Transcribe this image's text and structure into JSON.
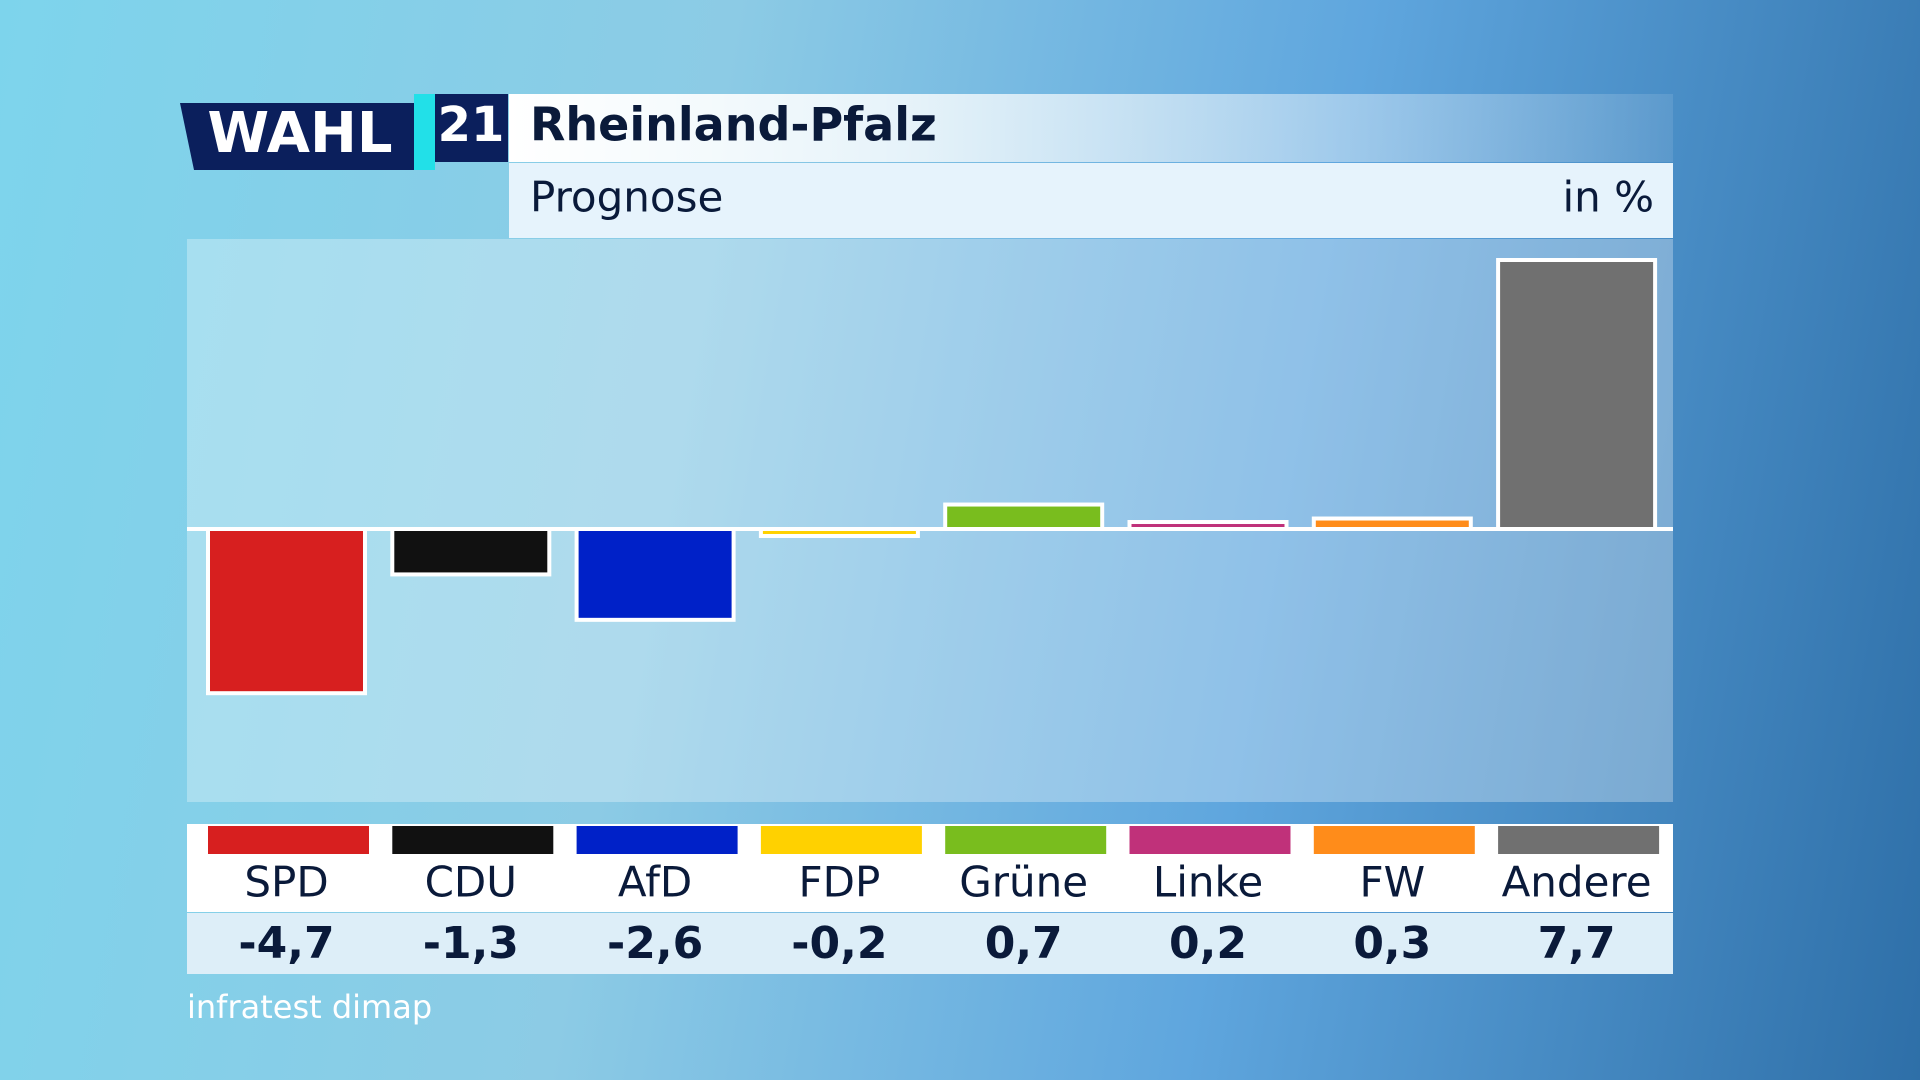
{
  "chart_data": {
    "type": "bar",
    "brand": "WAHL",
    "brand_number": "21",
    "title": "Rheinland-Pfalz",
    "subtitle": "Prognose",
    "unit": "in %",
    "categories": [
      "SPD",
      "CDU",
      "AfD",
      "FDP",
      "Grüne",
      "Linke",
      "FW",
      "Andere"
    ],
    "values": [
      -4.7,
      -1.3,
      -2.6,
      -0.2,
      0.7,
      0.2,
      0.3,
      7.7
    ],
    "value_labels": [
      "-4,7",
      "-1,3",
      "-2,6",
      "-0,2",
      "0,7",
      "0,2",
      "0,3",
      "7,7"
    ],
    "colors": [
      "#d71f1f",
      "#111111",
      "#0021c8",
      "#ffd100",
      "#79bd1e",
      "#c0317a",
      "#ff8c1a",
      "#707070"
    ],
    "source": "infratest dimap"
  }
}
